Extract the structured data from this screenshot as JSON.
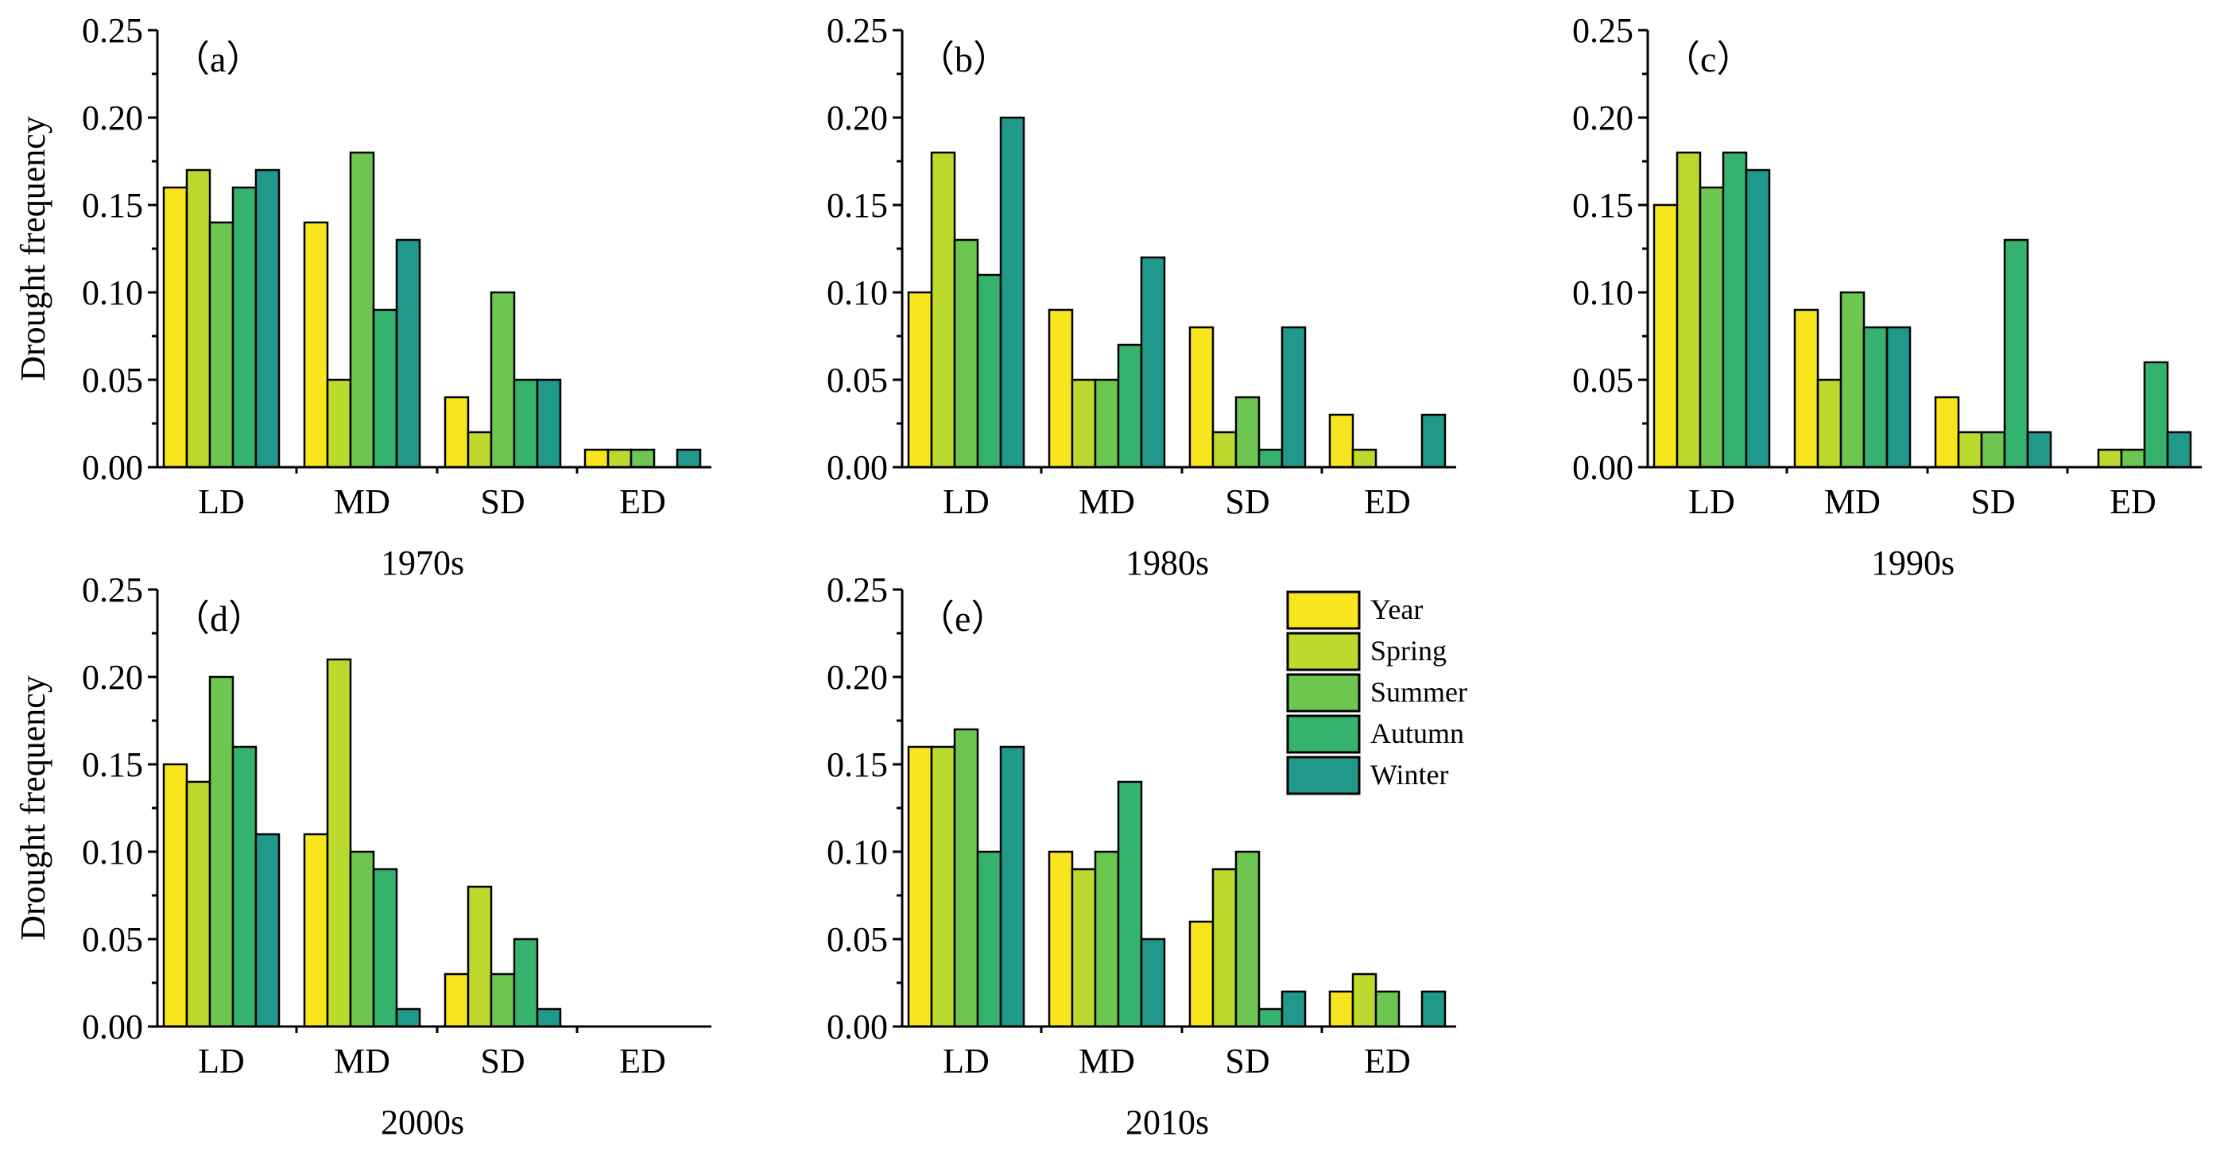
{
  "chart_data": {
    "type": "bar",
    "categories": [
      "LD",
      "MD",
      "SD",
      "ED"
    ],
    "series_names": [
      "Year",
      "Spring",
      "Summer",
      "Autumn",
      "Winter"
    ],
    "colors": [
      "#F9E51D",
      "#BCDA2D",
      "#6CC650",
      "#35B36E",
      "#21998A"
    ],
    "ylabel": "Drought frequency",
    "ylim": [
      0,
      0.25
    ],
    "yticks": [
      "0.00",
      "0.05",
      "0.10",
      "0.15",
      "0.20",
      "0.25"
    ],
    "legend_position": "right-of-panel-e",
    "panels": [
      {
        "label": "（a）",
        "xlabel": "1970s",
        "series": [
          {
            "name": "Year",
            "values": [
              0.16,
              0.14,
              0.04,
              0.01
            ]
          },
          {
            "name": "Spring",
            "values": [
              0.17,
              0.05,
              0.02,
              0.01
            ]
          },
          {
            "name": "Summer",
            "values": [
              0.14,
              0.18,
              0.1,
              0.01
            ]
          },
          {
            "name": "Autumn",
            "values": [
              0.16,
              0.09,
              0.05,
              0.0
            ]
          },
          {
            "name": "Winter",
            "values": [
              0.17,
              0.13,
              0.05,
              0.01
            ]
          }
        ]
      },
      {
        "label": "（b）",
        "xlabel": "1980s",
        "series": [
          {
            "name": "Year",
            "values": [
              0.1,
              0.09,
              0.08,
              0.03
            ]
          },
          {
            "name": "Spring",
            "values": [
              0.18,
              0.05,
              0.02,
              0.01
            ]
          },
          {
            "name": "Summer",
            "values": [
              0.13,
              0.05,
              0.04,
              0.0
            ]
          },
          {
            "name": "Autumn",
            "values": [
              0.11,
              0.07,
              0.01,
              0.0
            ]
          },
          {
            "name": "Winter",
            "values": [
              0.2,
              0.12,
              0.08,
              0.03
            ]
          }
        ]
      },
      {
        "label": "（c）",
        "xlabel": "1990s",
        "series": [
          {
            "name": "Year",
            "values": [
              0.15,
              0.09,
              0.04,
              0.0
            ]
          },
          {
            "name": "Spring",
            "values": [
              0.18,
              0.05,
              0.02,
              0.01
            ]
          },
          {
            "name": "Summer",
            "values": [
              0.16,
              0.1,
              0.02,
              0.01
            ]
          },
          {
            "name": "Autumn",
            "values": [
              0.18,
              0.08,
              0.13,
              0.06
            ]
          },
          {
            "name": "Winter",
            "values": [
              0.17,
              0.08,
              0.02,
              0.02
            ]
          }
        ]
      },
      {
        "label": "（d）",
        "xlabel": "2000s",
        "series": [
          {
            "name": "Year",
            "values": [
              0.15,
              0.11,
              0.03,
              0.0
            ]
          },
          {
            "name": "Spring",
            "values": [
              0.14,
              0.21,
              0.08,
              0.0
            ]
          },
          {
            "name": "Summer",
            "values": [
              0.2,
              0.1,
              0.03,
              0.0
            ]
          },
          {
            "name": "Autumn",
            "values": [
              0.16,
              0.09,
              0.05,
              0.0
            ]
          },
          {
            "name": "Winter",
            "values": [
              0.11,
              0.01,
              0.01,
              0.0
            ]
          }
        ]
      },
      {
        "label": "（e）",
        "xlabel": "2010s",
        "series": [
          {
            "name": "Year",
            "values": [
              0.16,
              0.1,
              0.06,
              0.02
            ]
          },
          {
            "name": "Spring",
            "values": [
              0.16,
              0.09,
              0.09,
              0.03
            ]
          },
          {
            "name": "Summer",
            "values": [
              0.17,
              0.1,
              0.1,
              0.02
            ]
          },
          {
            "name": "Autumn",
            "values": [
              0.1,
              0.14,
              0.01,
              0.0
            ]
          },
          {
            "name": "Winter",
            "values": [
              0.16,
              0.05,
              0.02,
              0.02
            ]
          }
        ]
      }
    ]
  }
}
